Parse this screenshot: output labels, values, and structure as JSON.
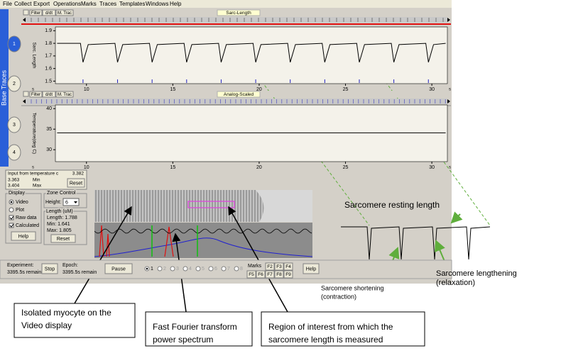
{
  "menu": [
    "File",
    "Collect",
    "Export",
    "Operations",
    "Marks",
    "Traces",
    "Templates",
    "Windows",
    "Help"
  ],
  "side_tab": {
    "label": "Base Traces",
    "numbers": [
      "1",
      "2",
      "3",
      "4"
    ]
  },
  "traces": [
    {
      "buttons": [
        "Filter",
        "d/dt",
        "M. Trac"
      ],
      "title": "Sarc-Length",
      "ylabel": "Sarc. Length",
      "x_unit": "s",
      "xlim": [
        8.2,
        30.9
      ],
      "xticks": [
        10,
        15,
        20,
        25,
        30
      ],
      "ylim": [
        1.48,
        1.93
      ],
      "yticks": [
        1.5,
        1.6,
        1.7,
        1.8,
        1.9
      ],
      "color": "#000000",
      "x": [
        8.3,
        9.65,
        9.8,
        10.1,
        11.65,
        11.8,
        12.1,
        13.65,
        13.8,
        14.1,
        15.65,
        15.8,
        16.1,
        17.65,
        17.8,
        18.1,
        19.65,
        19.8,
        20.1,
        21.65,
        21.8,
        22.1,
        23.65,
        23.8,
        24.1,
        25.65,
        25.8,
        26.1,
        27.65,
        27.8,
        28.1,
        29.65,
        29.8,
        30.1,
        30.8
      ],
      "values": [
        1.8,
        1.8,
        1.65,
        1.79,
        1.8,
        1.65,
        1.79,
        1.8,
        1.65,
        1.79,
        1.8,
        1.65,
        1.79,
        1.8,
        1.65,
        1.79,
        1.8,
        1.65,
        1.79,
        1.8,
        1.65,
        1.79,
        1.8,
        1.65,
        1.79,
        1.8,
        1.65,
        1.79,
        1.8,
        1.65,
        1.79,
        1.8,
        1.65,
        1.79,
        1.8
      ]
    },
    {
      "buttons": [
        "Filter",
        "d/dt",
        "M. Trac"
      ],
      "title": "Analog-Scaled",
      "ylabel": "Temperature(deg C)",
      "x_unit": "s",
      "xlim": [
        8.2,
        30.9
      ],
      "xticks": [
        10,
        15,
        20,
        25,
        30
      ],
      "ylim": [
        27.1,
        40.9
      ],
      "yticks": [
        30,
        35,
        40
      ],
      "color": "#000000",
      "x": [
        8.3,
        30.8
      ],
      "values": [
        34.1,
        34.1
      ]
    }
  ],
  "input_panel": {
    "label": "Input from temperature c",
    "current": "3.382",
    "min": "3.363",
    "min_label": "Min",
    "max": "3.404",
    "max_label": "Max",
    "reset": "Reset"
  },
  "display": {
    "title": "Display",
    "options": [
      "Video",
      "Plot"
    ],
    "checks": [
      "Raw data",
      "Calculated"
    ],
    "help": "Help"
  },
  "zone_control": {
    "title": "Zone Control",
    "height_label": "Height:",
    "height": "6",
    "length_title": "Length (uM)",
    "length": "Length: 1.788",
    "min": "Min: 1.641",
    "max": "Max: 1.805",
    "reset": "Reset"
  },
  "bottom_bar": {
    "experiment": "Experiment:",
    "experiment_remain": "3395.5s remain",
    "stop": "Stop",
    "epoch": "Epoch:",
    "epoch_remain": "3395.5s remain",
    "pause": "Pause",
    "radios": [
      "1",
      "2",
      "3",
      "4",
      "5",
      "6",
      "7",
      "8"
    ],
    "marks": "Marks",
    "fkeys": [
      "F2",
      "F3",
      "F4",
      "F5",
      "F6",
      "F7",
      "F8",
      "F9"
    ],
    "help": "Help"
  },
  "annotations": {
    "resting": "Sarcomere resting length",
    "lengthening": [
      "Sarcomere lengthening",
      "(relaxation)"
    ],
    "shortening": [
      "Sarcomere shortening",
      "(contraction)"
    ],
    "callouts": [
      [
        "Isolated myocyte on the",
        "Video display"
      ],
      [
        "Fast Fourier transform",
        "power spectrum"
      ],
      [
        "Region of interest from which the",
        "sarcomere length is measured"
      ]
    ]
  }
}
